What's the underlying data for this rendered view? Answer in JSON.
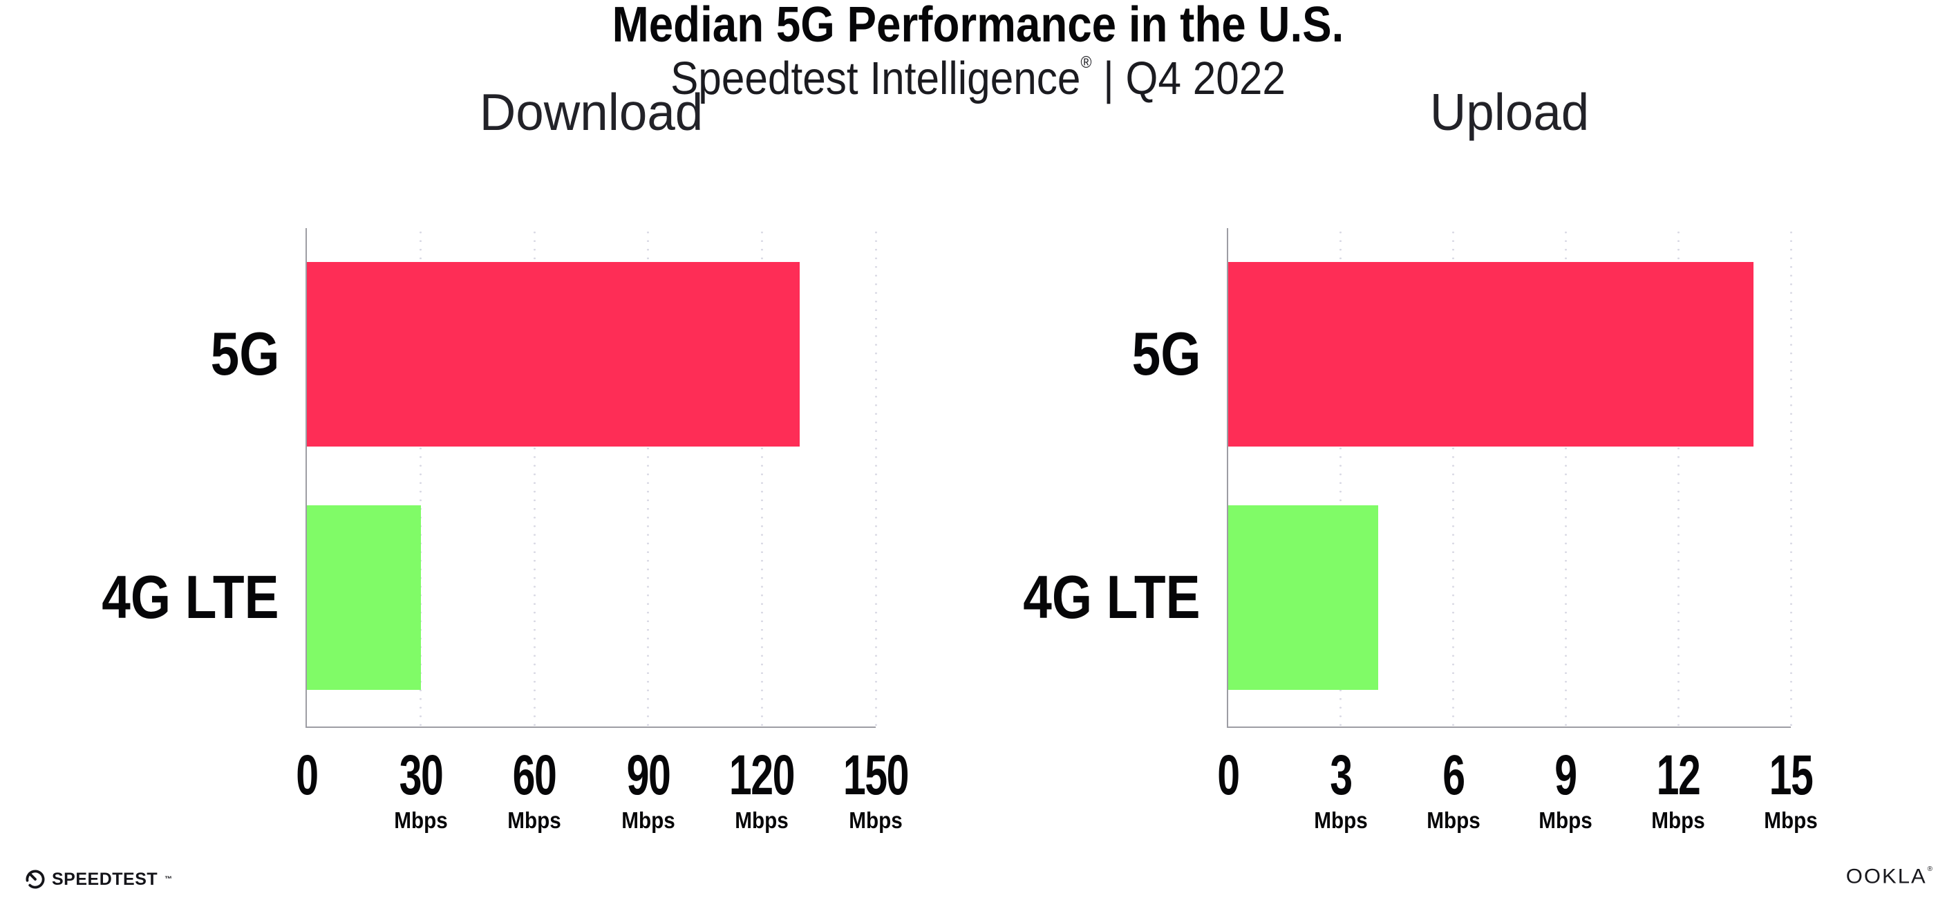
{
  "page": {
    "title": "Median 5G Performance in the U.S.",
    "subtitle_brand": "Speedtest Intelligence",
    "subtitle_reg": "®",
    "subtitle_rest": " | Q4 2022"
  },
  "colors": {
    "bar_5g_pink": "#FE2D56",
    "bar_4g_green": "#80FB67",
    "axis_grey": "#9D9DA4",
    "gridline_dot": "#D9D9E4",
    "text_black": "#060608"
  },
  "chart_data": [
    {
      "type": "bar",
      "orientation": "horizontal",
      "title": "Download",
      "categories": [
        "5G",
        "4G LTE"
      ],
      "values": [
        130,
        30
      ],
      "unit": "Mbps",
      "xlabel": "Mbps",
      "xlim": [
        0,
        150
      ],
      "xticks": [
        0,
        30,
        60,
        90,
        120,
        150
      ],
      "bar_colors": [
        "#FE2D56",
        "#80FB67"
      ],
      "grid": "dotted-vertical",
      "legend": "none"
    },
    {
      "type": "bar",
      "orientation": "horizontal",
      "title": "Upload",
      "categories": [
        "5G",
        "4G LTE"
      ],
      "values": [
        14,
        4
      ],
      "unit": "Mbps",
      "xlabel": "Mbps",
      "xlim": [
        0,
        15
      ],
      "xticks": [
        0,
        3,
        6,
        9,
        12,
        15
      ],
      "bar_colors": [
        "#FE2D56",
        "#80FB67"
      ],
      "grid": "dotted-vertical",
      "legend": "none"
    }
  ],
  "footer": {
    "speedtest_label": "SPEEDTEST",
    "speedtest_tm": "™",
    "ookla_label": "OOKLA",
    "ookla_reg": "®"
  }
}
